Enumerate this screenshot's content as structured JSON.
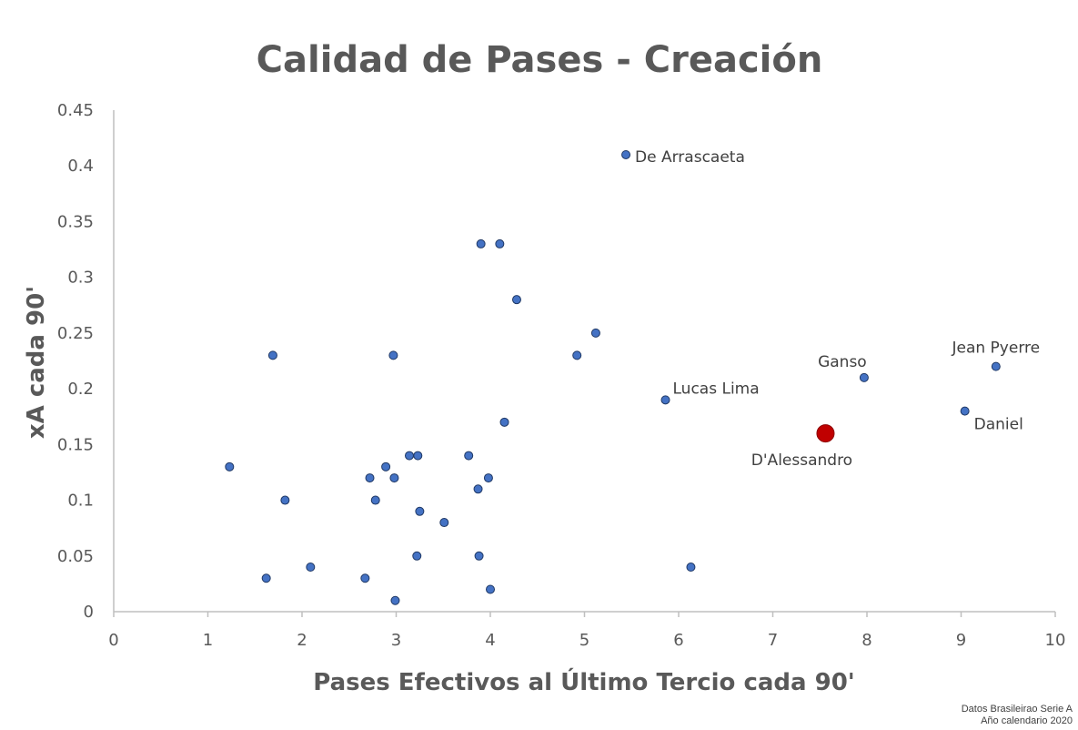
{
  "chart_data": {
    "type": "scatter",
    "title": "Calidad de Pases - Creación",
    "xlabel": "Pases Efectivos al Último Tercio cada 90'",
    "ylabel": "xA cada 90'",
    "xlim": [
      0,
      10
    ],
    "ylim": [
      0,
      0.45
    ],
    "x_ticks": [
      "0",
      "1",
      "2",
      "3",
      "4",
      "5",
      "6",
      "7",
      "8",
      "9",
      "10"
    ],
    "y_ticks": [
      "0",
      "0.05",
      "0.1",
      "0.15",
      "0.2",
      "0.25",
      "0.3",
      "0.35",
      "0.4",
      "0.45"
    ],
    "grid": false,
    "colors": {
      "point": "#4472c4",
      "point_edge": "#1f3864",
      "highlight": "#c00000",
      "axis": "#bfbfbf",
      "text": "#595959"
    },
    "points": [
      {
        "x": 5.44,
        "y": 0.41,
        "label": "De Arrascaeta"
      },
      {
        "x": 3.9,
        "y": 0.33
      },
      {
        "x": 4.1,
        "y": 0.33
      },
      {
        "x": 4.28,
        "y": 0.28
      },
      {
        "x": 5.12,
        "y": 0.25
      },
      {
        "x": 1.69,
        "y": 0.23
      },
      {
        "x": 2.97,
        "y": 0.23
      },
      {
        "x": 4.92,
        "y": 0.23
      },
      {
        "x": 9.37,
        "y": 0.22,
        "label": "Jean Pyerre"
      },
      {
        "x": 7.97,
        "y": 0.21,
        "label": "Ganso"
      },
      {
        "x": 5.86,
        "y": 0.19,
        "label": "Lucas Lima"
      },
      {
        "x": 9.04,
        "y": 0.18,
        "label": "Daniel"
      },
      {
        "x": 4.15,
        "y": 0.17
      },
      {
        "x": 3.14,
        "y": 0.14
      },
      {
        "x": 3.23,
        "y": 0.14
      },
      {
        "x": 3.77,
        "y": 0.14
      },
      {
        "x": 1.23,
        "y": 0.13
      },
      {
        "x": 2.89,
        "y": 0.13
      },
      {
        "x": 2.72,
        "y": 0.12
      },
      {
        "x": 2.98,
        "y": 0.12
      },
      {
        "x": 3.98,
        "y": 0.12
      },
      {
        "x": 3.87,
        "y": 0.11
      },
      {
        "x": 1.82,
        "y": 0.1
      },
      {
        "x": 2.78,
        "y": 0.1
      },
      {
        "x": 3.25,
        "y": 0.09
      },
      {
        "x": 3.51,
        "y": 0.08
      },
      {
        "x": 3.22,
        "y": 0.05
      },
      {
        "x": 3.88,
        "y": 0.05
      },
      {
        "x": 2.09,
        "y": 0.04
      },
      {
        "x": 6.13,
        "y": 0.04
      },
      {
        "x": 1.62,
        "y": 0.03
      },
      {
        "x": 2.67,
        "y": 0.03
      },
      {
        "x": 4.0,
        "y": 0.02
      },
      {
        "x": 2.99,
        "y": 0.01
      }
    ],
    "highlight": {
      "x": 7.56,
      "y": 0.16,
      "label": "D'Alessandro"
    }
  },
  "source": {
    "line1": "Datos Brasileirao Serie A",
    "line2": "Año calendario 2020"
  }
}
